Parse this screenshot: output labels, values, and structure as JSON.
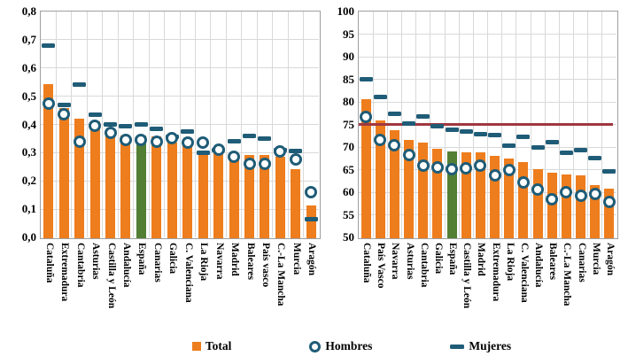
{
  "colors": {
    "total_bar": "#EE7D1D",
    "espana_bar": "#537F35",
    "marker_blue": "#1F5C77",
    "ref_line_red": "#A0373F",
    "gridline": "#D9D9D9",
    "plot_border": "#9F9F9F"
  },
  "legend": {
    "items": [
      {
        "label": "Total",
        "marker": "bar-square-icon"
      },
      {
        "label": "Hombres",
        "marker": "circle-icon"
      },
      {
        "label": "Mujeres",
        "marker": "dash-icon"
      }
    ]
  },
  "chart_data": [
    {
      "type": "bar",
      "title": "",
      "position": "left",
      "ylim": [
        0,
        0.8
      ],
      "ytick_labels": [
        "0,0",
        "0,1",
        "0,2",
        "0,3",
        "0,4",
        "0,5",
        "0,6",
        "0,7",
        "0,8"
      ],
      "grid": true,
      "legend_position": "bottom-shared",
      "highlight_category": "España",
      "highlight_note": "España bar drawn in green",
      "ref_line": null,
      "categories": [
        "Cataluña",
        "Extremadura",
        "Cantabria",
        "Asturias",
        "Castilla y León",
        "Andalucía",
        "España",
        "Canarias",
        "Galicia",
        "C. Valenciana",
        "La Rioja",
        "Navarra",
        "Madrid",
        "Baleares",
        "País vasco",
        "C.-La Mancha",
        "Murcia",
        "Aragón"
      ],
      "series": [
        {
          "name": "Total",
          "type": "bar",
          "values": [
            0.545,
            0.46,
            0.425,
            0.415,
            0.385,
            0.365,
            0.365,
            0.36,
            0.34,
            0.34,
            0.31,
            0.305,
            0.3,
            0.295,
            0.295,
            0.29,
            0.245,
            0.115
          ]
        },
        {
          "name": "Hombres",
          "type": "marker-circle",
          "values": [
            0.475,
            0.435,
            0.34,
            0.395,
            0.37,
            0.345,
            0.345,
            0.34,
            0.35,
            0.335,
            0.335,
            0.31,
            0.285,
            0.26,
            0.26,
            0.305,
            0.275,
            0.16
          ]
        },
        {
          "name": "Mujeres",
          "type": "marker-dash",
          "values": [
            0.68,
            0.47,
            0.54,
            0.435,
            0.4,
            0.395,
            0.4,
            0.385,
            0.355,
            0.375,
            0.3,
            0.31,
            0.34,
            0.36,
            0.35,
            0.31,
            0.305,
            0.065
          ]
        }
      ]
    },
    {
      "type": "bar",
      "title": "",
      "position": "right",
      "ylim": [
        50,
        100
      ],
      "ytick_labels": [
        "50",
        "55",
        "60",
        "65",
        "70",
        "75",
        "80",
        "85",
        "90",
        "95",
        "100"
      ],
      "grid": true,
      "legend_position": "bottom-shared",
      "highlight_category": "España",
      "highlight_note": "España bar drawn in green",
      "ref_line": {
        "value": 75
      },
      "categories": [
        "Cataluña",
        "País Vasco",
        "Navarra",
        "Asturias",
        "Cantabria",
        "Galicia",
        "España",
        "Castilla y León",
        "Madrid",
        "Extremadura",
        "La Rioja",
        "C. Valenciana",
        "Andalucía",
        "Baleares",
        "C.-La Mancha",
        "Canarias",
        "Murcia",
        "Aragón"
      ],
      "series": [
        {
          "name": "Total",
          "type": "bar",
          "values": [
            80.7,
            76.1,
            73.9,
            71.7,
            71.2,
            69.9,
            69.3,
            69.0,
            69.0,
            68.2,
            67.7,
            66.9,
            65.2,
            64.6,
            64.2,
            64.0,
            61.8,
            61.0
          ]
        },
        {
          "name": "Hombres",
          "type": "marker-circle",
          "values": [
            76.6,
            71.5,
            70.3,
            68.3,
            65.9,
            65.5,
            65.1,
            65.3,
            65.9,
            63.8,
            65.0,
            62.1,
            60.6,
            58.5,
            60.0,
            59.2,
            59.6,
            57.9
          ]
        },
        {
          "name": "Mujeres",
          "type": "marker-dash",
          "values": [
            85.0,
            81.0,
            77.4,
            75.2,
            76.8,
            74.6,
            73.8,
            73.4,
            72.8,
            72.7,
            70.3,
            72.2,
            69.9,
            71.1,
            68.7,
            69.3,
            67.6,
            64.6
          ]
        }
      ]
    }
  ]
}
